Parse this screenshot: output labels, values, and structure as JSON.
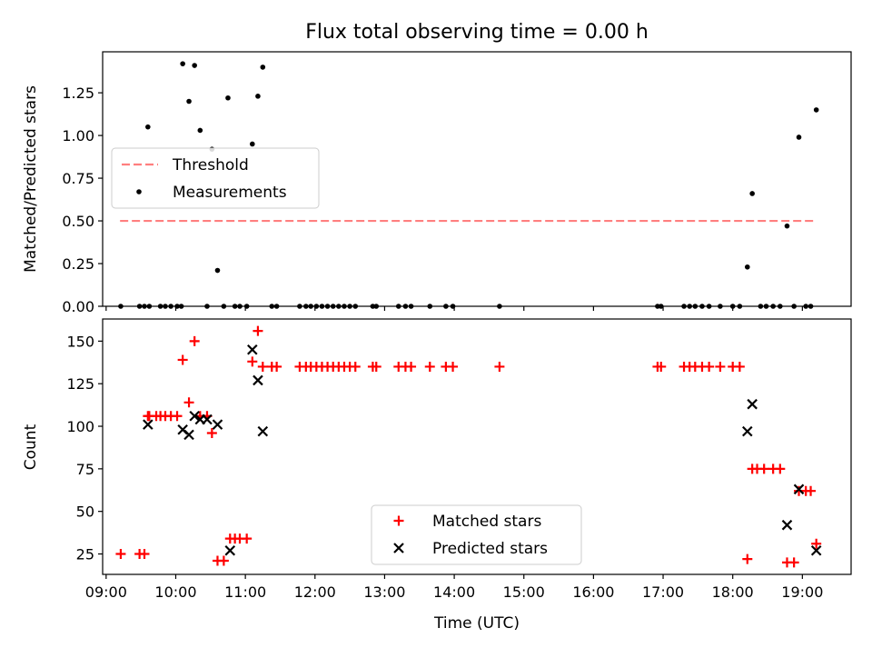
{
  "chart_data": {
    "title": "Flux total observing time = 0.00 h",
    "xlabel": "Time (UTC)",
    "x_unit": "hours UTC",
    "xlim": [
      8.95,
      19.7
    ],
    "x_ticks": [
      {
        "value": 9,
        "label": "09:00"
      },
      {
        "value": 10,
        "label": "10:00"
      },
      {
        "value": 11,
        "label": "11:00"
      },
      {
        "value": 12,
        "label": "12:00"
      },
      {
        "value": 13,
        "label": "13:00"
      },
      {
        "value": 14,
        "label": "14:00"
      },
      {
        "value": 15,
        "label": "15:00"
      },
      {
        "value": 16,
        "label": "16:00"
      },
      {
        "value": 17,
        "label": "17:00"
      },
      {
        "value": 18,
        "label": "18:00"
      },
      {
        "value": 19,
        "label": "19:00"
      }
    ],
    "panels": [
      {
        "type": "scatter",
        "ylabel": "Matched/Predicted stars",
        "ylim": [
          0,
          1.49
        ],
        "y_ticks": [
          "0.00",
          "0.25",
          "0.50",
          "0.75",
          "1.00",
          "1.25"
        ],
        "y_tick_values": [
          0,
          0.25,
          0.5,
          0.75,
          1.0,
          1.25
        ],
        "legend_position": "center-left",
        "threshold": {
          "name": "Threshold",
          "y": 0.5,
          "x_range": [
            9.2,
            19.2
          ],
          "color": "#ff7f7f"
        },
        "series": [
          {
            "name": "Measurements",
            "color": "#000000",
            "marker": "dot",
            "points": [
              [
                9.21,
                0
              ],
              [
                9.48,
                0
              ],
              [
                9.55,
                0
              ],
              [
                9.6,
                1.05
              ],
              [
                9.62,
                0
              ],
              [
                9.78,
                0
              ],
              [
                9.85,
                0
              ],
              [
                9.93,
                0
              ],
              [
                10.02,
                0
              ],
              [
                10.08,
                0
              ],
              [
                10.1,
                1.42
              ],
              [
                10.19,
                1.2
              ],
              [
                10.27,
                1.41
              ],
              [
                10.35,
                1.03
              ],
              [
                10.45,
                0
              ],
              [
                10.52,
                0.92
              ],
              [
                10.6,
                0.21
              ],
              [
                10.69,
                0
              ],
              [
                10.75,
                1.22
              ],
              [
                10.85,
                0
              ],
              [
                10.92,
                0
              ],
              [
                11.02,
                0
              ],
              [
                11.1,
                0.95
              ],
              [
                11.18,
                1.23
              ],
              [
                11.25,
                1.4
              ],
              [
                11.38,
                0
              ],
              [
                11.45,
                0
              ],
              [
                11.78,
                0
              ],
              [
                11.87,
                0
              ],
              [
                11.94,
                0
              ],
              [
                12.02,
                0
              ],
              [
                12.1,
                0
              ],
              [
                12.18,
                0
              ],
              [
                12.26,
                0
              ],
              [
                12.34,
                0
              ],
              [
                12.42,
                0
              ],
              [
                12.5,
                0
              ],
              [
                12.58,
                0
              ],
              [
                12.83,
                0
              ],
              [
                12.88,
                0
              ],
              [
                13.2,
                0
              ],
              [
                13.3,
                0
              ],
              [
                13.38,
                0
              ],
              [
                13.65,
                0
              ],
              [
                13.88,
                0
              ],
              [
                13.98,
                0
              ],
              [
                14.65,
                0
              ],
              [
                16.92,
                0
              ],
              [
                16.97,
                0
              ],
              [
                17.3,
                0
              ],
              [
                17.38,
                0
              ],
              [
                17.46,
                0
              ],
              [
                17.56,
                0
              ],
              [
                17.66,
                0
              ],
              [
                17.82,
                0
              ],
              [
                18.0,
                0
              ],
              [
                18.1,
                0
              ],
              [
                18.21,
                0.23
              ],
              [
                18.28,
                0.66
              ],
              [
                18.4,
                0
              ],
              [
                18.48,
                0
              ],
              [
                18.58,
                0
              ],
              [
                18.68,
                0
              ],
              [
                18.78,
                0.47
              ],
              [
                18.88,
                0
              ],
              [
                18.95,
                0.99
              ],
              [
                19.05,
                0
              ],
              [
                19.12,
                0
              ],
              [
                19.2,
                1.15
              ]
            ]
          }
        ]
      },
      {
        "type": "scatter",
        "ylabel": "Count",
        "ylim": [
          13,
          163
        ],
        "y_ticks": [
          "25",
          "50",
          "75",
          "100",
          "125",
          "150"
        ],
        "y_tick_values": [
          25,
          50,
          75,
          100,
          125,
          150
        ],
        "legend_position": "lower-center",
        "series": [
          {
            "name": "Matched stars",
            "color": "#ff0000",
            "marker": "plus",
            "points": [
              [
                9.21,
                25
              ],
              [
                9.48,
                25
              ],
              [
                9.55,
                25
              ],
              [
                9.6,
                106
              ],
              [
                9.62,
                106
              ],
              [
                9.72,
                106
              ],
              [
                9.78,
                106
              ],
              [
                9.85,
                106
              ],
              [
                9.93,
                106
              ],
              [
                10.02,
                106
              ],
              [
                10.1,
                139
              ],
              [
                10.19,
                114
              ],
              [
                10.27,
                150
              ],
              [
                10.35,
                106
              ],
              [
                10.45,
                106
              ],
              [
                10.52,
                96
              ],
              [
                10.6,
                21
              ],
              [
                10.69,
                21
              ],
              [
                10.78,
                34
              ],
              [
                10.85,
                34
              ],
              [
                10.92,
                34
              ],
              [
                11.02,
                34
              ],
              [
                11.1,
                138
              ],
              [
                11.18,
                156
              ],
              [
                11.25,
                135
              ],
              [
                11.38,
                135
              ],
              [
                11.45,
                135
              ],
              [
                11.78,
                135
              ],
              [
                11.87,
                135
              ],
              [
                11.94,
                135
              ],
              [
                12.02,
                135
              ],
              [
                12.1,
                135
              ],
              [
                12.18,
                135
              ],
              [
                12.26,
                135
              ],
              [
                12.34,
                135
              ],
              [
                12.42,
                135
              ],
              [
                12.5,
                135
              ],
              [
                12.58,
                135
              ],
              [
                12.83,
                135
              ],
              [
                12.88,
                135
              ],
              [
                13.2,
                135
              ],
              [
                13.3,
                135
              ],
              [
                13.38,
                135
              ],
              [
                13.65,
                135
              ],
              [
                13.88,
                135
              ],
              [
                13.98,
                135
              ],
              [
                14.65,
                135
              ],
              [
                16.92,
                135
              ],
              [
                16.97,
                135
              ],
              [
                17.3,
                135
              ],
              [
                17.38,
                135
              ],
              [
                17.46,
                135
              ],
              [
                17.56,
                135
              ],
              [
                17.66,
                135
              ],
              [
                17.82,
                135
              ],
              [
                18.0,
                135
              ],
              [
                18.1,
                135
              ],
              [
                18.21,
                22
              ],
              [
                18.28,
                75
              ],
              [
                18.35,
                75
              ],
              [
                18.45,
                75
              ],
              [
                18.58,
                75
              ],
              [
                18.68,
                75
              ],
              [
                18.78,
                20
              ],
              [
                18.88,
                20
              ],
              [
                18.95,
                62
              ],
              [
                19.05,
                62
              ],
              [
                19.12,
                62
              ],
              [
                19.2,
                31
              ]
            ]
          },
          {
            "name": "Predicted stars",
            "color": "#000000",
            "marker": "x",
            "points": [
              [
                9.6,
                101
              ],
              [
                10.1,
                98
              ],
              [
                10.19,
                95
              ],
              [
                10.27,
                106
              ],
              [
                10.35,
                104
              ],
              [
                10.45,
                104
              ],
              [
                10.6,
                101
              ],
              [
                10.78,
                27
              ],
              [
                11.1,
                145
              ],
              [
                11.18,
                127
              ],
              [
                11.25,
                97
              ],
              [
                18.21,
                97
              ],
              [
                18.28,
                113
              ],
              [
                18.78,
                42
              ],
              [
                18.95,
                63
              ],
              [
                19.2,
                27
              ]
            ]
          }
        ]
      }
    ]
  }
}
